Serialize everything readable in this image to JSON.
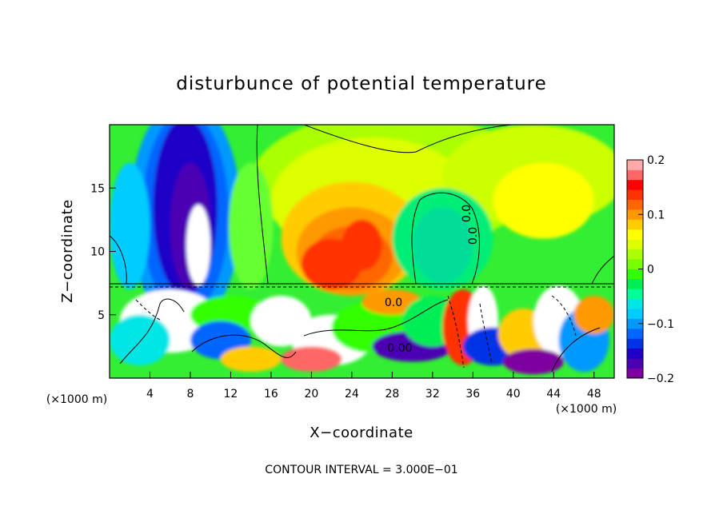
{
  "chart_data": {
    "type": "heatmap",
    "title": "disturbunce of potential temperature",
    "xlabel": "X−coordinate",
    "ylabel": "Z−coordinate",
    "x_unit": "(×1000 m)",
    "z_unit": "(×1000 m)",
    "xlim": [
      0,
      50
    ],
    "ylim": [
      0,
      20
    ],
    "xticks": [
      4,
      8,
      12,
      16,
      20,
      24,
      28,
      32,
      36,
      40,
      44,
      48
    ],
    "yticks": [
      5,
      10,
      15
    ],
    "colorbar": {
      "ticks": [
        {
          "value": 0.2,
          "label": "0.2"
        },
        {
          "value": 0.1,
          "label": "0.1"
        },
        {
          "value": 0,
          "label": "0"
        },
        {
          "value": -0.1,
          "label": "−0.1"
        },
        {
          "value": -0.2,
          "label": "−0.2"
        }
      ],
      "vmin": -0.2,
      "vmax": 0.2,
      "colors": [
        "#7f00a0",
        "#4b00b4",
        "#1e00c8",
        "#0033e6",
        "#0066ff",
        "#0099ff",
        "#00ccff",
        "#00e6e6",
        "#00ff99",
        "#00ee55",
        "#33ff00",
        "#77ff00",
        "#aaff00",
        "#ddff00",
        "#ffff00",
        "#ffcc00",
        "#ff9900",
        "#ff6600",
        "#ff3300",
        "#ff0000",
        "#ff6666",
        "#ffaaaa"
      ]
    },
    "contour_labels": [
      "0.0",
      "0.0",
      "0.0",
      "0.00"
    ],
    "contour_interval_text": "CONTOUR INTERVAL = 3.000E−01"
  }
}
